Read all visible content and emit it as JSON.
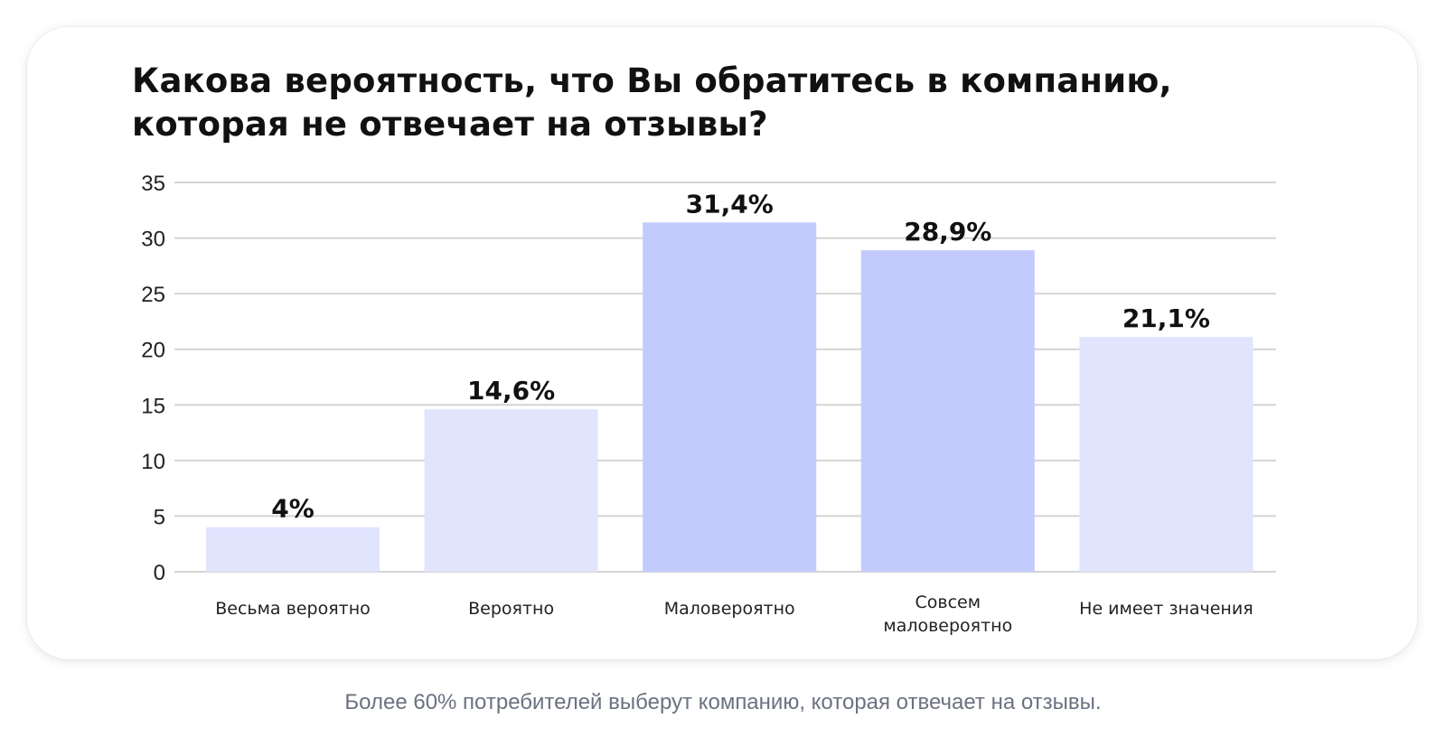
{
  "card": {
    "title_lines": [
      "Какова вероятность, что Вы обратитесь в компанию,",
      "которая не отвечает на отзывы?"
    ]
  },
  "caption": "Более 60% потребителей выберут компанию, которая отвечает на отзывы.",
  "colors": {
    "bar_light": "#e0e4fd",
    "bar_dark": "#c3cbfd",
    "grid": "#d4d4d4",
    "text": "#111111"
  },
  "chart_data": {
    "type": "bar",
    "title": "Какова вероятность, что Вы обратитесь в компанию, которая не отвечает на отзывы?",
    "categories": [
      [
        "Весьма вероятно"
      ],
      [
        "Вероятно"
      ],
      [
        "Маловероятно"
      ],
      [
        "Совсем",
        "маловероятно"
      ],
      [
        "Не имеет значения"
      ]
    ],
    "values": [
      4,
      14.6,
      31.4,
      28.9,
      21.1
    ],
    "data_labels": [
      "4%",
      "14,6%",
      "31,4%",
      "28,9%",
      "21,1%"
    ],
    "highlight": [
      false,
      false,
      true,
      true,
      false
    ],
    "ylim": [
      0,
      35
    ],
    "yticks": [
      0,
      5,
      10,
      15,
      20,
      25,
      30,
      35
    ],
    "grid": true,
    "legend": "none",
    "xlabel": "",
    "ylabel": ""
  }
}
